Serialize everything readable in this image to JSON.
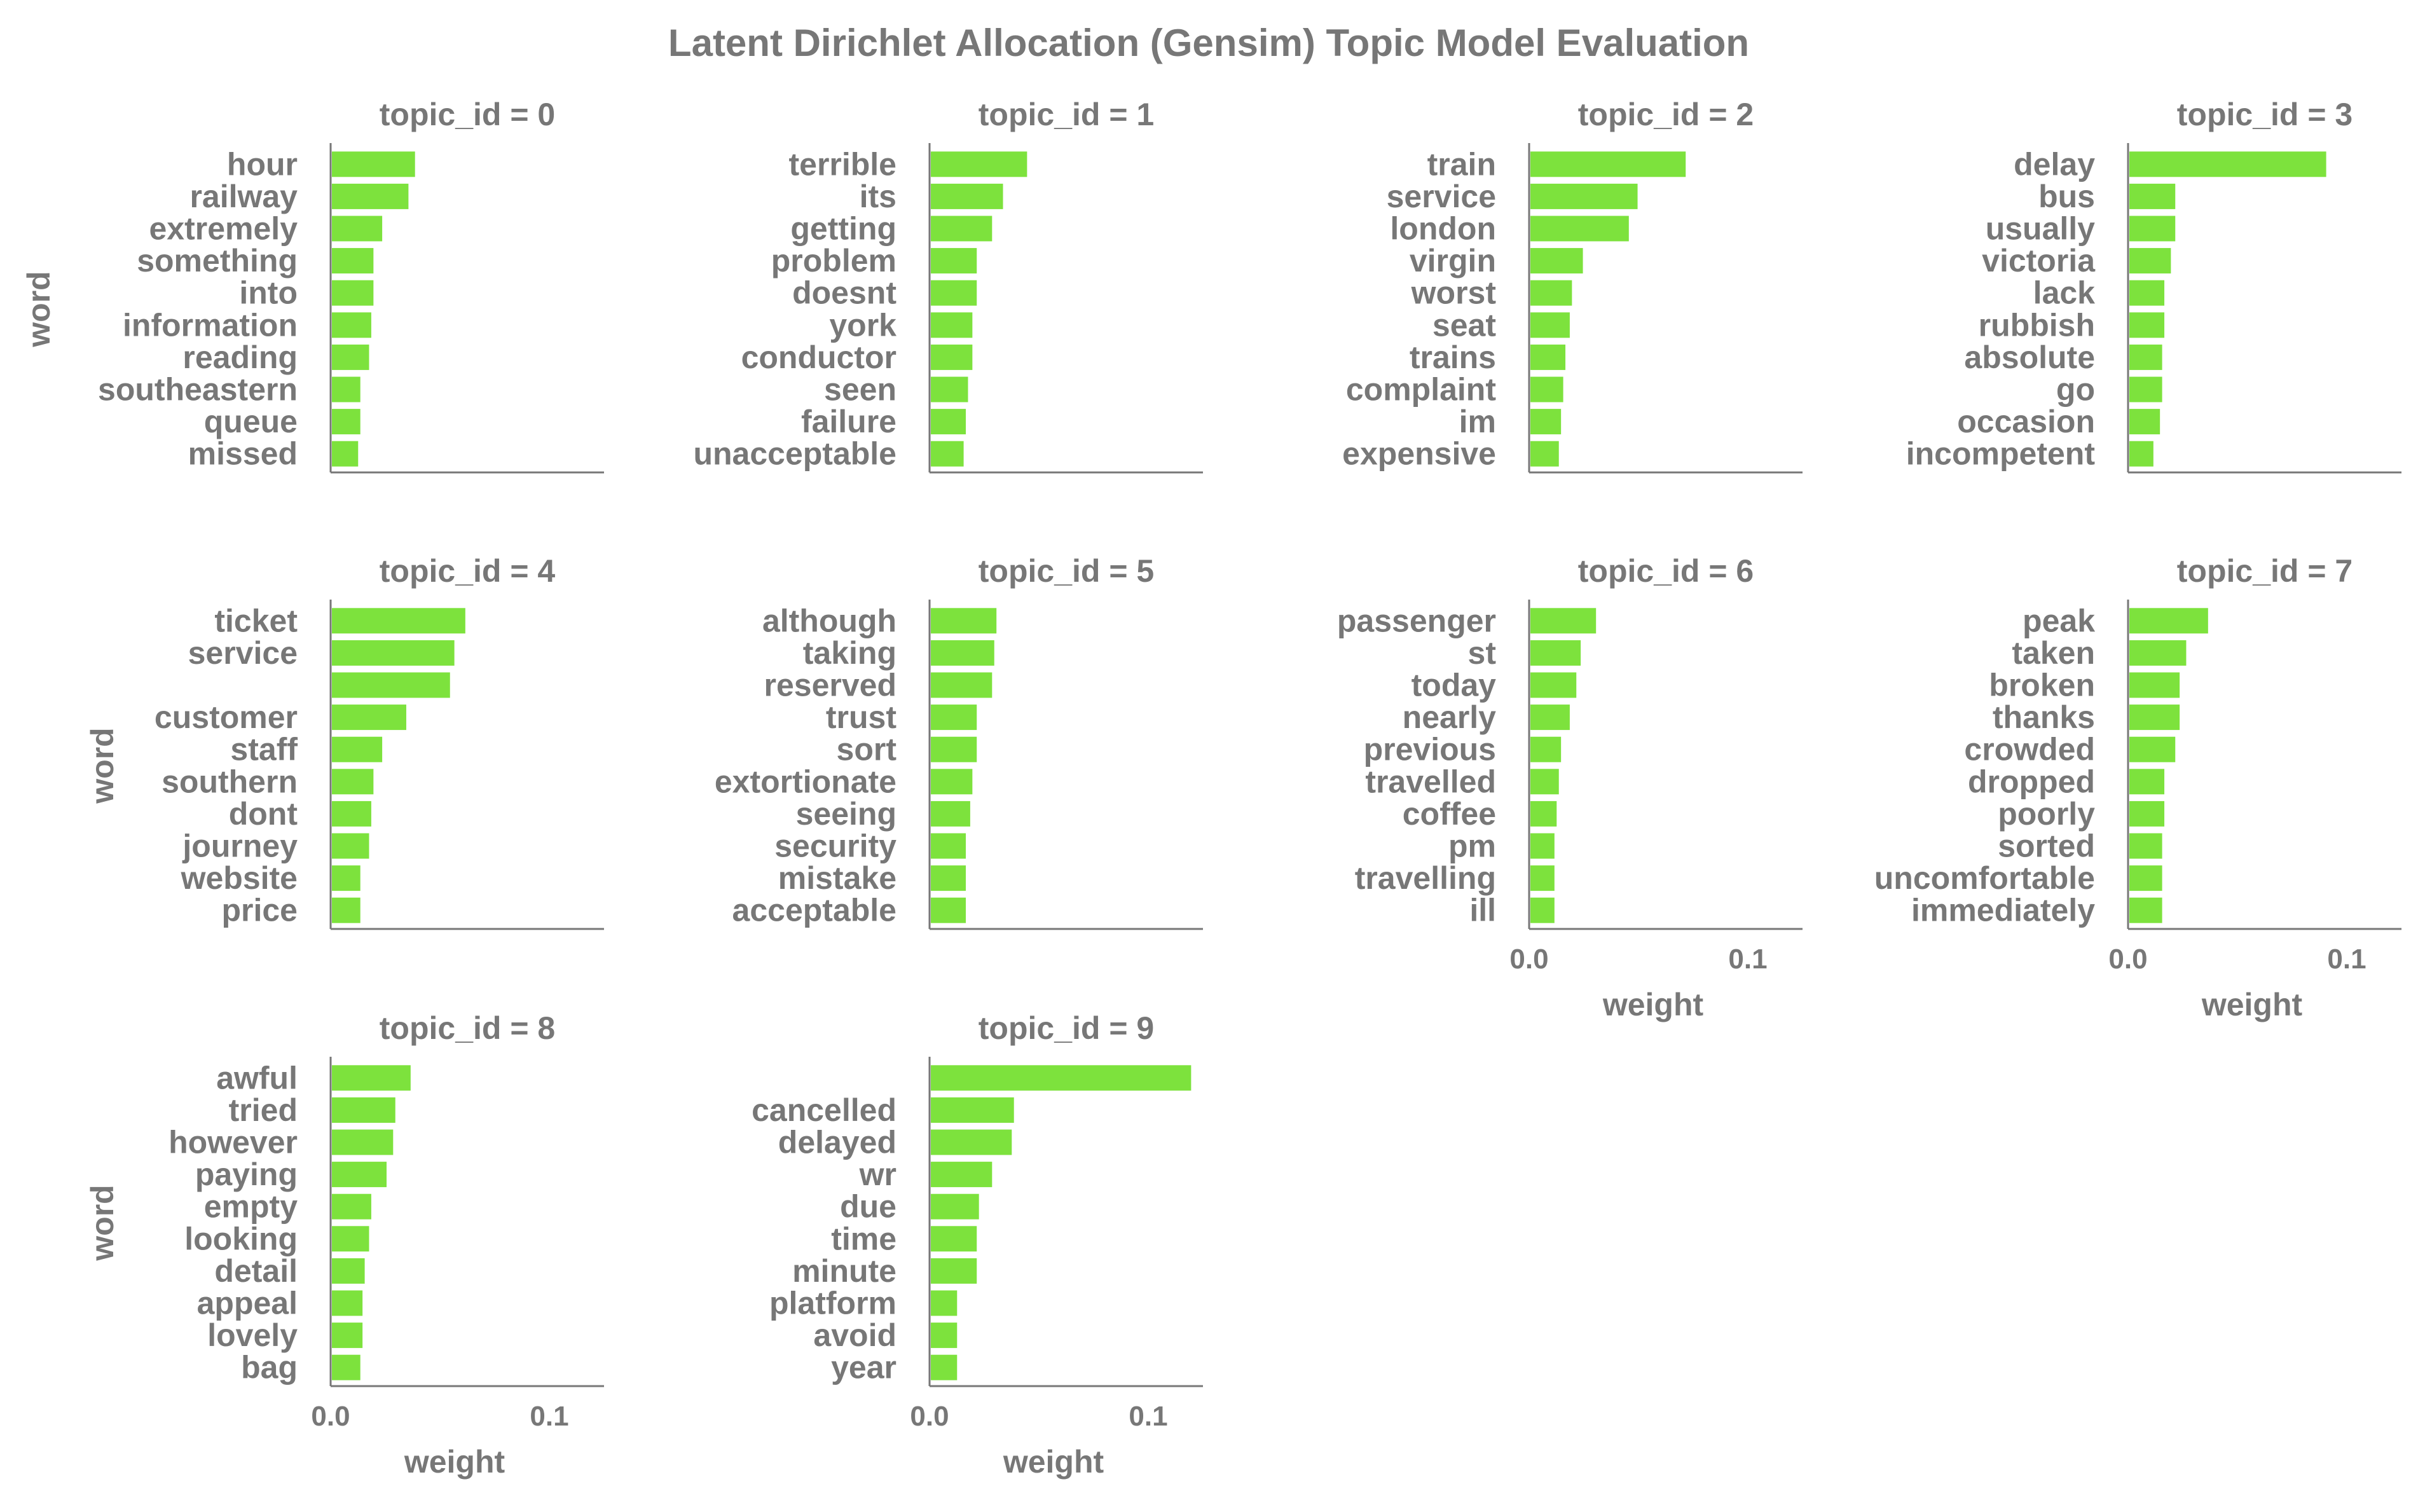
{
  "chart_data": {
    "type": "bar",
    "orientation": "horizontal",
    "title": "Latent Dirichlet Allocation (Gensim) Topic Model Evaluation",
    "xlabel": "weight",
    "ylabel": "word",
    "xlim": [
      0,
      0.125
    ],
    "xticks": [
      0.0,
      0.1
    ],
    "xtick_labels": [
      "0.0",
      "0.1"
    ],
    "bar_color": "#7de23d",
    "text_color": "#777777",
    "grid": false,
    "panels": [
      {
        "title": "topic_id = 0",
        "words": [
          "hour",
          "railway",
          "extremely",
          "something",
          "into",
          "information",
          "reading",
          "southeastern",
          "queue",
          "missed"
        ],
        "values": [
          0.038,
          0.035,
          0.023,
          0.019,
          0.019,
          0.018,
          0.017,
          0.013,
          0.013,
          0.012
        ]
      },
      {
        "title": "topic_id = 1",
        "words": [
          "terrible",
          "its",
          "getting",
          "problem",
          "doesnt",
          "york",
          "conductor",
          "seen",
          "failure",
          "unacceptable"
        ],
        "values": [
          0.044,
          0.033,
          0.028,
          0.021,
          0.021,
          0.019,
          0.019,
          0.017,
          0.016,
          0.015
        ]
      },
      {
        "title": "topic_id = 2",
        "words": [
          "train",
          "service",
          "london",
          "virgin",
          "worst",
          "seat",
          "trains",
          "complaint",
          "im",
          "expensive"
        ],
        "values": [
          0.071,
          0.049,
          0.045,
          0.024,
          0.019,
          0.018,
          0.016,
          0.015,
          0.014,
          0.013
        ]
      },
      {
        "title": "topic_id = 3",
        "words": [
          "delay",
          "bus",
          "usually",
          "victoria",
          "lack",
          "rubbish",
          "absolute",
          "go",
          "occasion",
          "incompetent"
        ],
        "values": [
          0.09,
          0.021,
          0.021,
          0.019,
          0.016,
          0.016,
          0.015,
          0.015,
          0.014,
          0.011
        ]
      },
      {
        "title": "topic_id = 4",
        "words": [
          "ticket",
          "service",
          "",
          "customer",
          "staff",
          "southern",
          "dont",
          "journey",
          "website",
          "price"
        ],
        "values": [
          0.061,
          0.056,
          0.054,
          0.034,
          0.023,
          0.019,
          0.018,
          0.017,
          0.013,
          0.013
        ]
      },
      {
        "title": "topic_id = 5",
        "words": [
          "although",
          "taking",
          "reserved",
          "trust",
          "sort",
          "extortionate",
          "seeing",
          "security",
          "mistake",
          "acceptable"
        ],
        "values": [
          0.03,
          0.029,
          0.028,
          0.021,
          0.021,
          0.019,
          0.018,
          0.016,
          0.016,
          0.016
        ]
      },
      {
        "title": "topic_id = 6",
        "words": [
          "passenger",
          "st",
          "today",
          "nearly",
          "previous",
          "travelled",
          "coffee",
          "pm",
          "travelling",
          "ill"
        ],
        "values": [
          0.03,
          0.023,
          0.021,
          0.018,
          0.014,
          0.013,
          0.012,
          0.011,
          0.011,
          0.011
        ]
      },
      {
        "title": "topic_id = 7",
        "words": [
          "peak",
          "taken",
          "broken",
          "thanks",
          "crowded",
          "dropped",
          "poorly",
          "sorted",
          "uncomfortable",
          "immediately"
        ],
        "values": [
          0.036,
          0.026,
          0.023,
          0.023,
          0.021,
          0.016,
          0.016,
          0.015,
          0.015,
          0.015
        ]
      },
      {
        "title": "topic_id = 8",
        "words": [
          "awful",
          "tried",
          "however",
          "paying",
          "empty",
          "looking",
          "detail",
          "appeal",
          "lovely",
          "bag"
        ],
        "values": [
          0.036,
          0.029,
          0.028,
          0.025,
          0.018,
          0.017,
          0.015,
          0.014,
          0.014,
          0.013
        ]
      },
      {
        "title": "topic_id = 9",
        "words": [
          "",
          "cancelled",
          "delayed",
          "wr",
          "due",
          "time",
          "minute",
          "platform",
          "avoid",
          "year"
        ],
        "values": [
          0.119,
          0.038,
          0.037,
          0.028,
          0.022,
          0.021,
          0.021,
          0.012,
          0.012,
          0.012
        ]
      }
    ]
  }
}
